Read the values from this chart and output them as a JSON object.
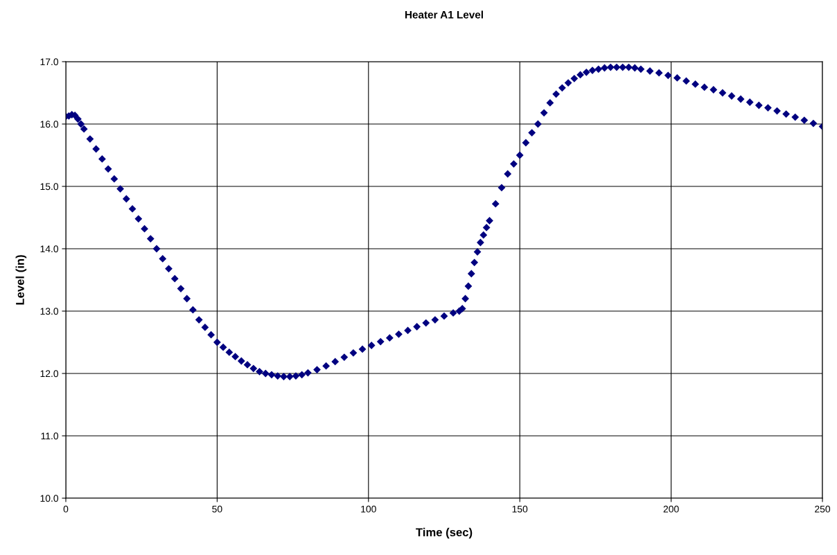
{
  "chart_data": {
    "type": "scatter",
    "title": "Heater A1 Level",
    "xlabel": "Time (sec)",
    "ylabel": "Level (in)",
    "x": [
      0,
      1,
      2,
      3,
      4,
      5,
      6,
      8,
      10,
      12,
      14,
      16,
      18,
      20,
      22,
      24,
      26,
      28,
      30,
      32,
      34,
      36,
      38,
      40,
      42,
      44,
      46,
      48,
      50,
      52,
      54,
      56,
      58,
      60,
      62,
      64,
      66,
      68,
      70,
      72,
      74,
      76,
      78,
      80,
      83,
      86,
      89,
      92,
      95,
      98,
      101,
      104,
      107,
      110,
      113,
      116,
      119,
      122,
      125,
      128,
      130,
      131,
      132,
      133,
      134,
      135,
      136,
      137,
      138,
      139,
      140,
      142,
      144,
      146,
      148,
      150,
      152,
      154,
      156,
      158,
      160,
      162,
      164,
      166,
      168,
      170,
      172,
      174,
      176,
      178,
      180,
      182,
      184,
      186,
      188,
      190,
      193,
      196,
      199,
      202,
      205,
      208,
      211,
      214,
      217,
      220,
      223,
      226,
      229,
      232,
      235,
      238,
      241,
      244,
      247,
      250
    ],
    "values": [
      16.12,
      16.13,
      16.15,
      16.14,
      16.08,
      16.0,
      15.92,
      15.76,
      15.6,
      15.44,
      15.28,
      15.12,
      14.96,
      14.8,
      14.64,
      14.48,
      14.32,
      14.16,
      14.0,
      13.84,
      13.68,
      13.52,
      13.36,
      13.2,
      13.02,
      12.86,
      12.74,
      12.62,
      12.5,
      12.42,
      12.34,
      12.27,
      12.2,
      12.14,
      12.08,
      12.03,
      12.0,
      11.98,
      11.96,
      11.95,
      11.95,
      11.96,
      11.98,
      12.01,
      12.06,
      12.12,
      12.19,
      12.26,
      12.33,
      12.39,
      12.45,
      12.51,
      12.57,
      12.63,
      12.69,
      12.75,
      12.81,
      12.86,
      12.92,
      12.97,
      13.0,
      13.04,
      13.2,
      13.4,
      13.6,
      13.78,
      13.95,
      14.1,
      14.22,
      14.34,
      14.45,
      14.72,
      14.98,
      15.2,
      15.36,
      15.5,
      15.7,
      15.86,
      16.0,
      16.18,
      16.34,
      16.48,
      16.58,
      16.66,
      16.73,
      16.79,
      16.83,
      16.86,
      16.88,
      16.9,
      16.91,
      16.91,
      16.91,
      16.91,
      16.9,
      16.88,
      16.85,
      16.82,
      16.78,
      16.74,
      16.69,
      16.64,
      16.59,
      16.55,
      16.5,
      16.45,
      16.4,
      16.35,
      16.3,
      16.26,
      16.21,
      16.16,
      16.11,
      16.06,
      16.01,
      15.96
    ],
    "color": "#000080",
    "marker": "diamond",
    "grid": true,
    "xlim": [
      0,
      250
    ],
    "xticks": [
      0,
      50,
      100,
      150,
      200,
      250
    ],
    "ylim": [
      10,
      17
    ],
    "yticks": [
      {
        "value": 10,
        "label": "10.0"
      },
      {
        "value": 11,
        "label": "11.0"
      },
      {
        "value": 12,
        "label": "12.0"
      },
      {
        "value": 13,
        "label": "13.0"
      },
      {
        "value": 14,
        "label": "14.0"
      },
      {
        "value": 15,
        "label": "15.0"
      },
      {
        "value": 16,
        "label": "16.0"
      },
      {
        "value": 17,
        "label": "17.0"
      }
    ]
  }
}
